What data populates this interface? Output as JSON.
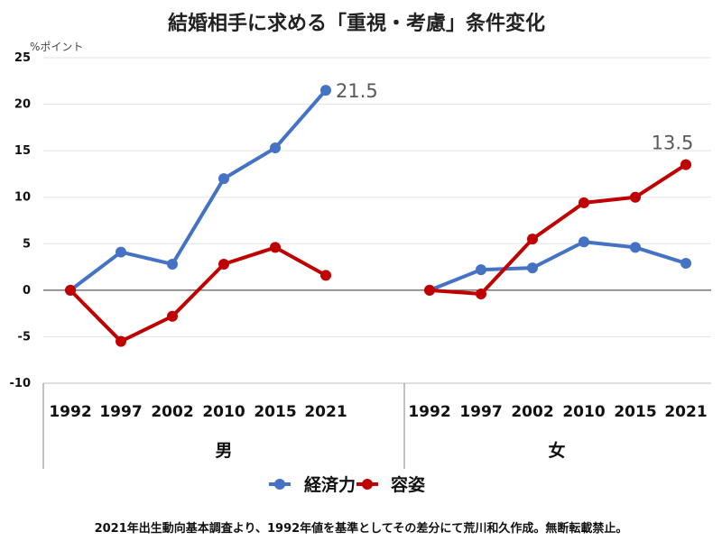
{
  "chart_data": {
    "type": "line",
    "title": "結婚相手に求める「重視・考慮」条件変化",
    "unit": "%ポイント",
    "ylim": [
      -10,
      25
    ],
    "yticks": [
      25,
      20,
      15,
      10,
      5,
      0,
      -5,
      -10
    ],
    "categories": [
      "1992",
      "1997",
      "2002",
      "2010",
      "2015",
      "2021"
    ],
    "groups": [
      {
        "name": "男",
        "series": [
          {
            "name": "経済力",
            "values": [
              0,
              4.1,
              2.8,
              12.0,
              15.3,
              21.5
            ]
          },
          {
            "name": "容姿",
            "values": [
              0,
              -5.5,
              -2.8,
              2.8,
              4.6,
              1.6
            ]
          }
        ],
        "data_labels": [
          {
            "series": "経済力",
            "index": 5,
            "text": "21.5"
          }
        ]
      },
      {
        "name": "女",
        "series": [
          {
            "name": "経済力",
            "values": [
              0,
              2.2,
              2.4,
              5.2,
              4.6,
              2.9
            ]
          },
          {
            "name": "容姿",
            "values": [
              0,
              -0.4,
              5.5,
              9.4,
              10.0,
              13.5
            ]
          }
        ],
        "data_labels": [
          {
            "series": "容姿",
            "index": 5,
            "text": "13.5"
          }
        ]
      }
    ],
    "legend": [
      {
        "name": "経済力",
        "color": "#4472C4"
      },
      {
        "name": "容姿",
        "color": "#C00000"
      }
    ],
    "grid": true,
    "legend_position": "bottom"
  },
  "footnote": "2021年出生動向基本調査より、1992年値を基準としてその差分にて荒川和久作成。無断転載禁止。"
}
